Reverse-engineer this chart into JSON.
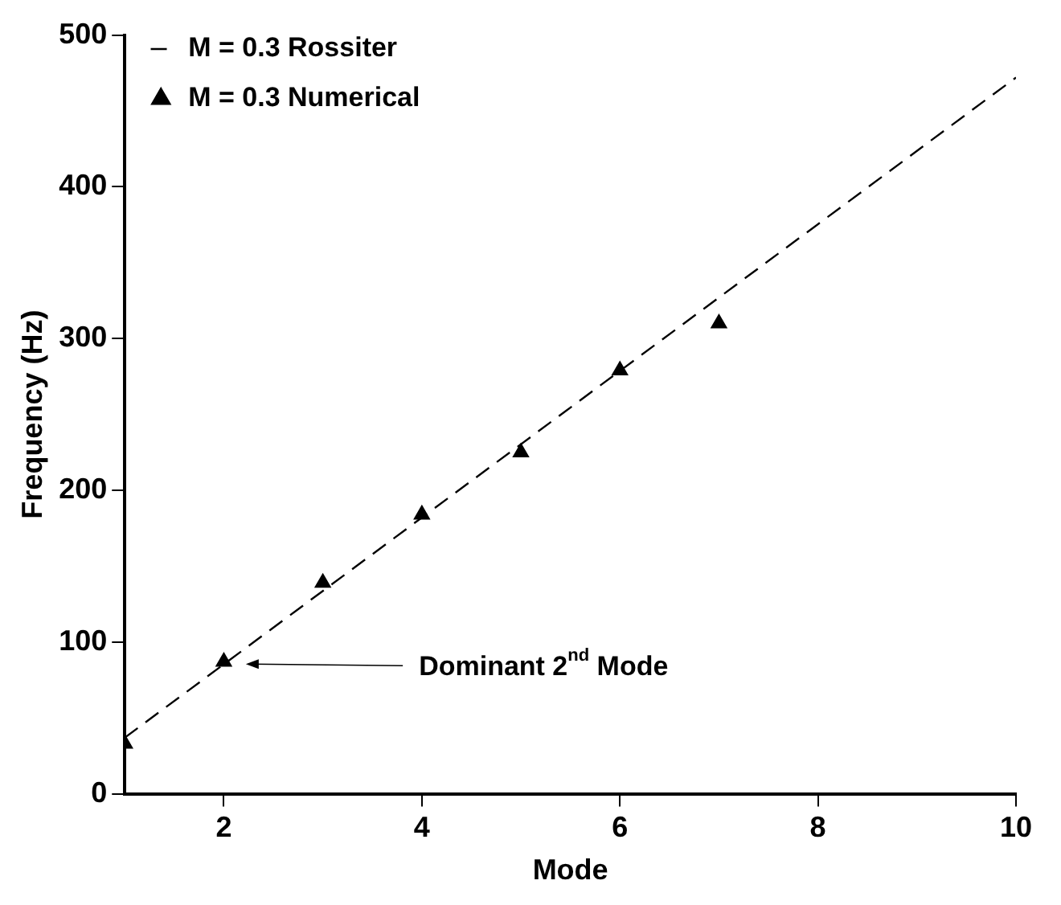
{
  "chart_data": {
    "type": "scatter",
    "xlabel": "Mode",
    "ylabel": "Frequency (Hz)",
    "xlim": [
      1,
      10
    ],
    "ylim": [
      0,
      500
    ],
    "xticks": [
      2,
      4,
      6,
      8,
      10
    ],
    "yticks": [
      0,
      100,
      200,
      300,
      400,
      500
    ],
    "grid": false,
    "legend": "top left",
    "series": [
      {
        "name": "M = 0.3 Rossiter",
        "type": "line",
        "line_style": "dashed",
        "marker": "none",
        "color": "#000000",
        "x": [
          1,
          10
        ],
        "values": [
          37,
          472
        ]
      },
      {
        "name": "M = 0.3 Numerical",
        "type": "scatter",
        "marker": "triangle",
        "color": "#000000",
        "x": [
          1,
          2,
          3,
          4,
          5,
          6,
          7
        ],
        "values": [
          33,
          87,
          139,
          184,
          225,
          279,
          310
        ]
      }
    ],
    "annotations": [
      "Dominant 2$^{nd}$ Mode"
    ]
  }
}
